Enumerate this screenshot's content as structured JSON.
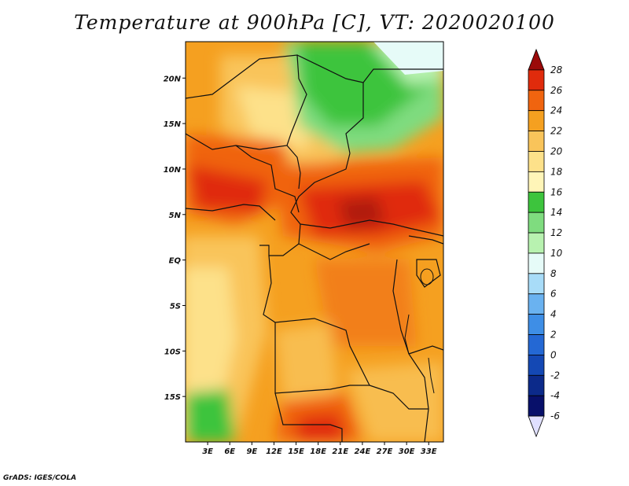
{
  "title": "Temperature at 900hPa [C], VT: 2020020100",
  "footer": "GrADS: IGES/COLA",
  "map": {
    "lon_labels": [
      "3E",
      "6E",
      "9E",
      "12E",
      "15E",
      "18E",
      "21E",
      "24E",
      "27E",
      "30E",
      "33E"
    ],
    "lat_labels": [
      "20N",
      "15N",
      "10N",
      "5N",
      "EQ",
      "5S",
      "10S",
      "15S"
    ],
    "lon_range": [
      0,
      35
    ],
    "lat_range": [
      -20,
      24
    ]
  },
  "colorbar": {
    "labels": [
      "28",
      "26",
      "24",
      "22",
      "20",
      "18",
      "16",
      "14",
      "12",
      "10",
      "8",
      "6",
      "4",
      "2",
      "0",
      "-2",
      "-4",
      "-6"
    ],
    "colors": [
      "#9b0a0a",
      "#e02b0c",
      "#f0640f",
      "#f5a020",
      "#f9c45a",
      "#fde18a",
      "#fff5b8",
      "#3dc43d",
      "#7fdc7f",
      "#b8f2b0",
      "#e6fbf8",
      "#a8dcf8",
      "#6ab2f0",
      "#3e8ee6",
      "#2468d4",
      "#1448b4",
      "#0c2a8a",
      "#08106a",
      "#e0e0ff"
    ]
  }
}
